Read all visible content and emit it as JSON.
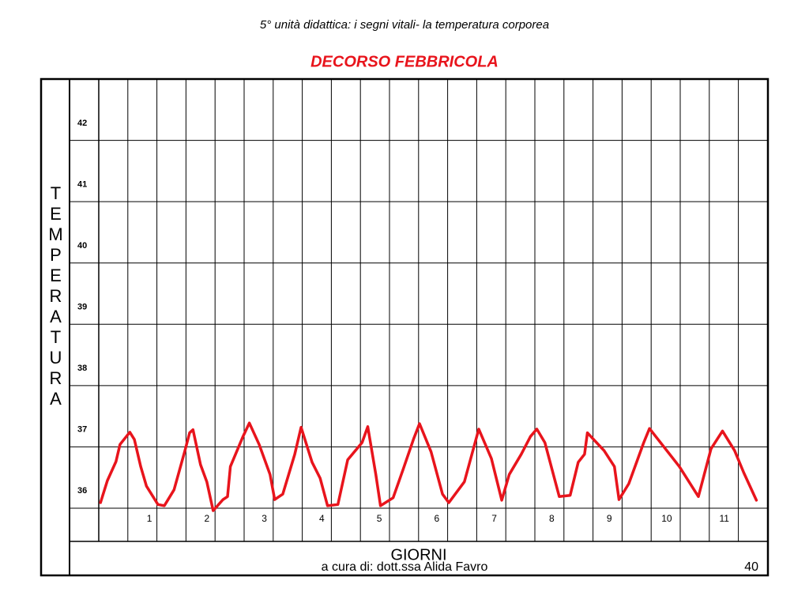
{
  "header": "5° unità didattica: i segni vitali- la temperatura corporea",
  "chart_data": {
    "type": "line",
    "title": "DECORSO FEBBRICOLA",
    "y_label": "TEMPERATURA",
    "x_label": "GIORNI",
    "color": "#e8141c",
    "x": [
      0.15,
      0.27,
      0.42,
      0.49,
      0.66,
      0.74,
      0.85,
      0.95,
      1.15,
      1.26,
      1.43,
      1.62,
      1.7,
      1.76,
      1.89,
      2.0,
      2.11,
      2.28,
      2.36,
      2.41,
      2.63,
      2.74,
      2.91,
      3.1,
      3.18,
      3.32,
      3.53,
      3.64,
      3.83,
      3.97,
      4.1,
      4.28,
      4.45,
      4.7,
      4.8,
      4.94,
      5.02,
      5.24,
      5.41,
      5.6,
      5.7,
      5.9,
      6.1,
      6.21,
      6.48,
      6.73,
      6.95,
      7.13,
      7.26,
      7.47,
      7.63,
      7.74,
      7.88,
      8.13,
      8.32,
      8.46,
      8.57,
      8.62,
      8.91,
      9.09,
      9.17,
      9.34,
      9.6,
      9.7,
      10.22,
      10.55,
      10.77,
      10.97,
      11.18,
      11.34,
      11.56
    ],
    "values": [
      36.09,
      36.45,
      36.76,
      37.04,
      37.24,
      37.12,
      36.68,
      36.36,
      36.06,
      36.04,
      36.3,
      36.94,
      37.23,
      37.28,
      36.71,
      36.43,
      35.96,
      36.14,
      36.19,
      36.68,
      37.17,
      37.39,
      37.04,
      36.55,
      36.14,
      36.23,
      36.88,
      37.32,
      36.75,
      36.49,
      36.04,
      36.06,
      36.79,
      37.07,
      37.33,
      36.55,
      36.04,
      36.17,
      36.62,
      37.14,
      37.38,
      36.92,
      36.23,
      36.09,
      36.43,
      37.29,
      36.81,
      36.13,
      36.55,
      36.88,
      37.17,
      37.29,
      37.07,
      36.19,
      36.21,
      36.75,
      36.88,
      37.23,
      36.94,
      36.68,
      36.14,
      36.4,
      37.07,
      37.3,
      36.68,
      36.19,
      36.97,
      37.26,
      36.94,
      36.58,
      36.13
    ],
    "xlim": [
      0.12,
      11.76
    ],
    "xticks": [
      1,
      2,
      3,
      4,
      5,
      6,
      7,
      8,
      9,
      10,
      11
    ],
    "ylim": [
      36,
      43
    ],
    "yticks": [
      36,
      37,
      38,
      39,
      40,
      41,
      42
    ],
    "grid": true
  },
  "footer": {
    "credit": "a cura di: dott.ssa Alida Favro",
    "page": "40"
  }
}
